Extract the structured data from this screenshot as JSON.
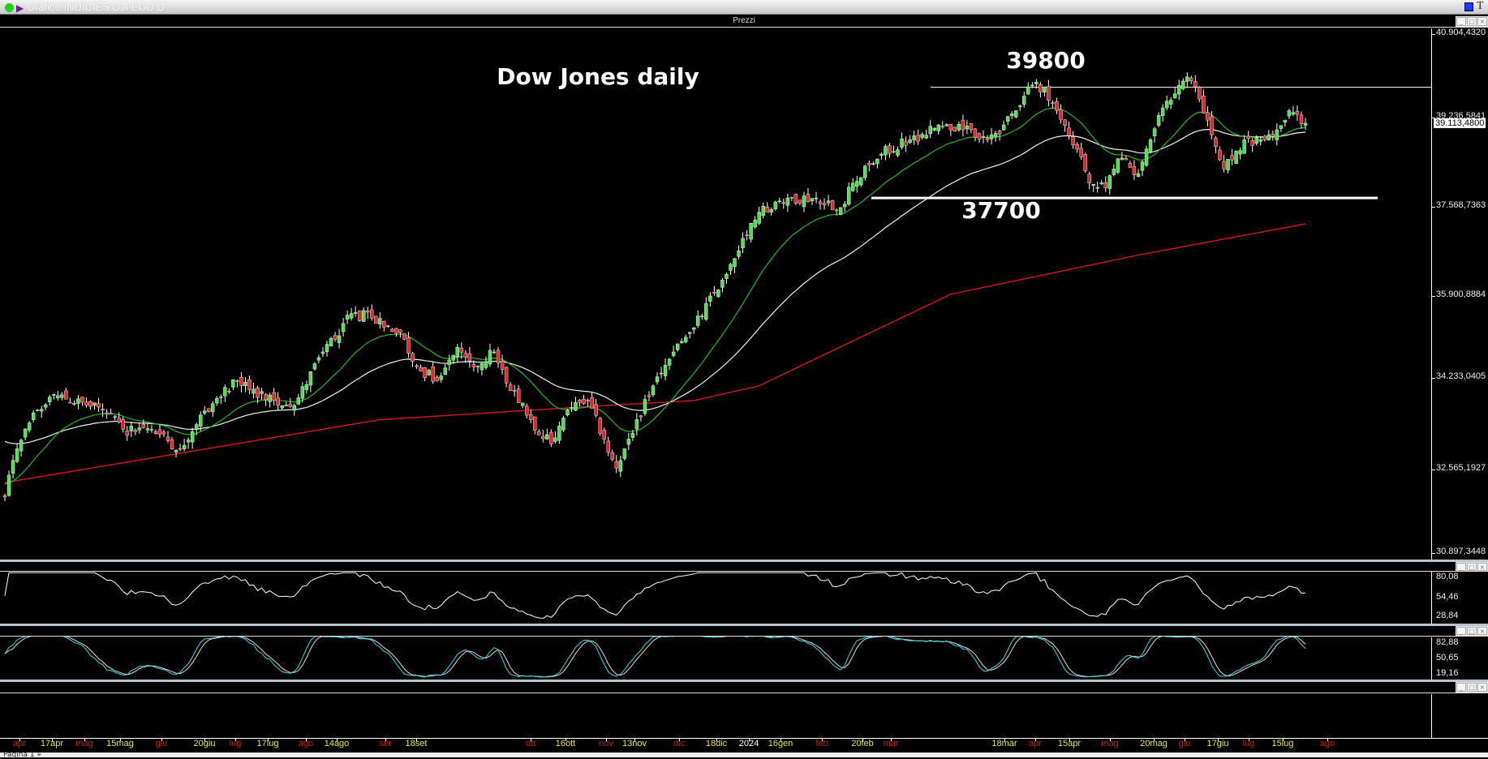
{
  "window": {
    "title": "Grafico INDICIES.DJI EOD D"
  },
  "price_pane": {
    "title": "Prezzi",
    "price_label": "39.113,4800",
    "y_labels": [
      "40.904,4320",
      "39.236,5841",
      "37.568,7363",
      "35.900,8884",
      "34.233,0405",
      "32.565,1927",
      "30.897,3448"
    ]
  },
  "annotations": {
    "title": "Dow Jones daily",
    "resistance": "39800",
    "support": "37700"
  },
  "rsi_pane": {
    "labels": [
      "80,08",
      "54,46",
      "28,84"
    ]
  },
  "stoch_pane": {
    "labels": [
      "82,88",
      "50,65",
      "19,16"
    ]
  },
  "x_axis": {
    "labels": [
      {
        "t": "apr",
        "m": 1
      },
      {
        "t": "17apr",
        "m": 0
      },
      {
        "t": "mag",
        "m": 1
      },
      {
        "t": "15mag",
        "m": 0
      },
      {
        "t": "giu",
        "m": 1
      },
      {
        "t": "20giu",
        "m": 0
      },
      {
        "t": "lug",
        "m": 1
      },
      {
        "t": "17lug",
        "m": 0
      },
      {
        "t": "ago",
        "m": 1
      },
      {
        "t": "14ago",
        "m": 0
      },
      {
        "t": "set",
        "m": 1
      },
      {
        "t": "18set",
        "m": 0
      },
      {
        "t": "ott",
        "m": 1
      },
      {
        "t": "16ott",
        "m": 0
      },
      {
        "t": "nov",
        "m": 1
      },
      {
        "t": "13nov",
        "m": 0
      },
      {
        "t": "dic",
        "m": 1
      },
      {
        "t": "18dic",
        "m": 0
      },
      {
        "t": "2024",
        "m": 2
      },
      {
        "t": "16gen",
        "m": 0
      },
      {
        "t": "feb",
        "m": 1
      },
      {
        "t": "20feb",
        "m": 0
      },
      {
        "t": "mar",
        "m": 1
      },
      {
        "t": "18mar",
        "m": 0
      },
      {
        "t": "apr",
        "m": 1
      },
      {
        "t": "15apr",
        "m": 0
      },
      {
        "t": "mag",
        "m": 1
      },
      {
        "t": "20mag",
        "m": 0
      },
      {
        "t": "giu",
        "m": 1
      },
      {
        "t": "17giu",
        "m": 0
      },
      {
        "t": "lug",
        "m": 1
      },
      {
        "t": "15lug",
        "m": 0
      },
      {
        "t": "ago",
        "m": 1
      }
    ]
  },
  "tabs": {
    "page": "Pagina 1 »"
  },
  "colors": {
    "up": "#4fe04f",
    "down": "#e0282e",
    "ma20": "#22b822",
    "ma50": "#f0f0f0",
    "ma200": "#c8181c",
    "stoch_k": "#3fd8e0",
    "month": "#d01818",
    "day": "#e8e83a",
    "year": "#ffffff"
  },
  "chart_data": {
    "type": "candlestick",
    "bars": 320,
    "ylim": [
      30897.3448,
      40904.432
    ],
    "close_anchors": [
      [
        0,
        32048
      ],
      [
        3,
        32960
      ],
      [
        8,
        33690
      ],
      [
        13,
        33965
      ],
      [
        24,
        33690
      ],
      [
        29,
        33325
      ],
      [
        36,
        33325
      ],
      [
        43,
        32960
      ],
      [
        48,
        33600
      ],
      [
        57,
        34240
      ],
      [
        66,
        33870
      ],
      [
        71,
        33780
      ],
      [
        78,
        34790
      ],
      [
        85,
        35517
      ],
      [
        90,
        35430
      ],
      [
        97,
        35150
      ],
      [
        101,
        34510
      ],
      [
        106,
        34240
      ],
      [
        111,
        34880
      ],
      [
        115,
        34510
      ],
      [
        120,
        34790
      ],
      [
        124,
        34060
      ],
      [
        129,
        33510
      ],
      [
        134,
        33050
      ],
      [
        138,
        33690
      ],
      [
        143,
        33870
      ],
      [
        147,
        33140
      ],
      [
        150,
        32595
      ],
      [
        155,
        33510
      ],
      [
        159,
        34150
      ],
      [
        164,
        34790
      ],
      [
        169,
        35245
      ],
      [
        176,
        36150
      ],
      [
        180,
        36700
      ],
      [
        185,
        37430
      ],
      [
        192,
        37700
      ],
      [
        199,
        37700
      ],
      [
        205,
        37520
      ],
      [
        208,
        37980
      ],
      [
        215,
        38530
      ],
      [
        222,
        38800
      ],
      [
        229,
        39080
      ],
      [
        235,
        38990
      ],
      [
        241,
        38800
      ],
      [
        245,
        39080
      ],
      [
        249,
        39440
      ],
      [
        251,
        39800
      ],
      [
        255,
        39800
      ],
      [
        258,
        39350
      ],
      [
        263,
        38620
      ],
      [
        266,
        37980
      ],
      [
        270,
        37890
      ],
      [
        273,
        38440
      ],
      [
        278,
        38160
      ],
      [
        281,
        38800
      ],
      [
        285,
        39530
      ],
      [
        290,
        39990
      ],
      [
        292,
        39800
      ],
      [
        295,
        39170
      ],
      [
        299,
        38250
      ],
      [
        304,
        38800
      ],
      [
        308,
        38800
      ],
      [
        312,
        38990
      ],
      [
        315,
        39350
      ],
      [
        319,
        39113
      ]
    ],
    "ma200_anchors": [
      [
        0,
        32320
      ],
      [
        92,
        33510
      ],
      [
        148,
        33780
      ],
      [
        169,
        33870
      ],
      [
        185,
        34150
      ],
      [
        232,
        35880
      ],
      [
        278,
        36620
      ],
      [
        319,
        37210
      ]
    ],
    "ma50_start": 33140,
    "levels": [
      39800,
      37700
    ]
  }
}
